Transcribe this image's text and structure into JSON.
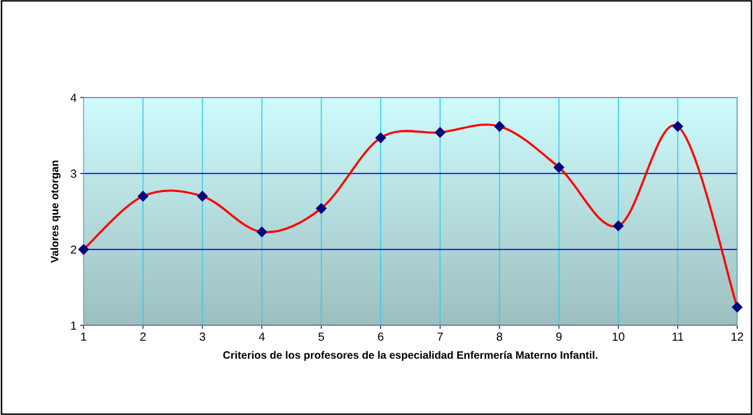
{
  "chart_data": {
    "type": "line",
    "xlabel": "Criterios de los profesores de la especialidad Enfermería Materno Infantil.",
    "ylabel": "Valores que otorgan",
    "x": [
      1,
      2,
      3,
      4,
      5,
      6,
      7,
      8,
      9,
      10,
      11,
      12
    ],
    "series": [
      {
        "color": "#ff0000",
        "values": [
          2.0,
          2.7,
          2.7,
          2.23,
          2.54,
          3.47,
          3.54,
          3.62,
          3.08,
          2.31,
          3.62,
          1.24
        ]
      }
    ],
    "xlim": [
      1,
      12
    ],
    "xticks": [
      1,
      2,
      3,
      4,
      5,
      6,
      7,
      8,
      9,
      10,
      11,
      12
    ],
    "ylim": [
      1,
      4
    ],
    "yticks": [
      1,
      2,
      3,
      4
    ],
    "grid": true,
    "marker": "diamond",
    "line_style": "solid"
  }
}
